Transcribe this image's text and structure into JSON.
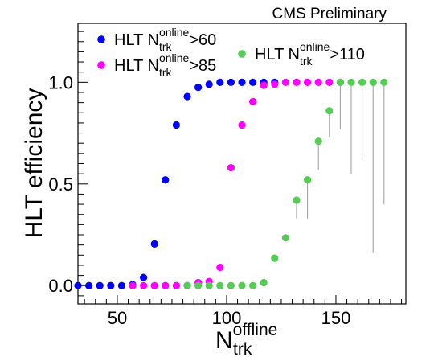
{
  "chart_data": {
    "type": "scatter",
    "annotation": "CMS Preliminary",
    "ylabel": "HLT efficiency",
    "xlabel": {
      "main": "N",
      "sup": "offline",
      "sub": "trk"
    },
    "xlim": [
      32,
      182
    ],
    "ylim": [
      -0.09,
      1.29
    ],
    "xticks": [
      50,
      100,
      150
    ],
    "yticks": [
      0.0,
      0.5,
      1.0
    ],
    "ytick_labels": [
      "0.0",
      "0.5",
      "1.0"
    ],
    "grid": false,
    "legend_placement": "top-left",
    "series": [
      {
        "name": "HLT N^{online}_{trk}>60",
        "label": {
          "main": "HLT N",
          "sup": "online",
          "sub": "trk",
          "tail": ">60"
        },
        "color": "#0000ff",
        "points": [
          [
            32,
            0.0
          ],
          [
            37,
            0.0
          ],
          [
            42,
            0.0
          ],
          [
            47,
            0.0
          ],
          [
            52,
            0.0
          ],
          [
            57,
            0.005
          ],
          [
            62,
            0.04
          ],
          [
            67,
            0.205
          ],
          [
            72,
            0.52
          ],
          [
            77,
            0.79
          ],
          [
            82,
            0.93
          ],
          [
            87,
            0.975
          ],
          [
            92,
            0.99
          ],
          [
            97,
            1.0
          ],
          [
            102,
            1.0
          ],
          [
            107,
            1.0
          ],
          [
            112,
            1.0
          ],
          [
            117,
            1.0
          ],
          [
            122,
            1.0
          ]
        ]
      },
      {
        "name": "HLT N^{online}_{trk}>85",
        "label": {
          "main": "HLT N",
          "sup": "online",
          "sub": "trk",
          "tail": ">85"
        },
        "color": "#ff00ff",
        "points": [
          [
            57,
            0.0
          ],
          [
            62,
            0.0
          ],
          [
            67,
            0.0
          ],
          [
            72,
            0.0
          ],
          [
            77,
            0.0
          ],
          [
            82,
            0.0
          ],
          [
            87,
            0.015
          ],
          [
            92,
            0.02
          ],
          [
            97,
            0.09
          ],
          [
            102,
            0.58
          ],
          [
            107,
            0.79
          ],
          [
            112,
            0.905
          ],
          [
            117,
            0.985
          ],
          [
            122,
            0.99
          ],
          [
            127,
            1.0
          ],
          [
            132,
            1.0
          ],
          [
            137,
            1.0
          ],
          [
            142,
            1.0
          ],
          [
            147,
            1.0
          ],
          [
            152,
            1.0
          ]
        ]
      },
      {
        "name": "HLT N^{online}_{trk}>110",
        "label": {
          "main": "HLT N",
          "sup": "online",
          "sub": "trk",
          "tail": ">110"
        },
        "color": "#55cc55",
        "points": [
          [
            82,
            0.0
          ],
          [
            87,
            0.0
          ],
          [
            92,
            0.0
          ],
          [
            97,
            0.0
          ],
          [
            102,
            0.0
          ],
          [
            107,
            0.0
          ],
          [
            112,
            0.0
          ],
          [
            117,
            0.015
          ],
          [
            122,
            0.135
          ],
          [
            127,
            0.235
          ],
          [
            132,
            0.42
          ],
          [
            137,
            0.52
          ],
          [
            142,
            0.71
          ],
          [
            147,
            0.86
          ],
          [
            152,
            1.0
          ],
          [
            157,
            1.0
          ],
          [
            162,
            1.0
          ],
          [
            167,
            1.0
          ],
          [
            172,
            1.0
          ]
        ],
        "error_low": [
          [
            132,
            0.33
          ],
          [
            137,
            0.33
          ],
          [
            142,
            0.57
          ],
          [
            147,
            0.73
          ],
          [
            152,
            0.77
          ],
          [
            157,
            0.55
          ],
          [
            162,
            0.63
          ],
          [
            167,
            0.16
          ],
          [
            172,
            0.4
          ]
        ]
      }
    ]
  }
}
